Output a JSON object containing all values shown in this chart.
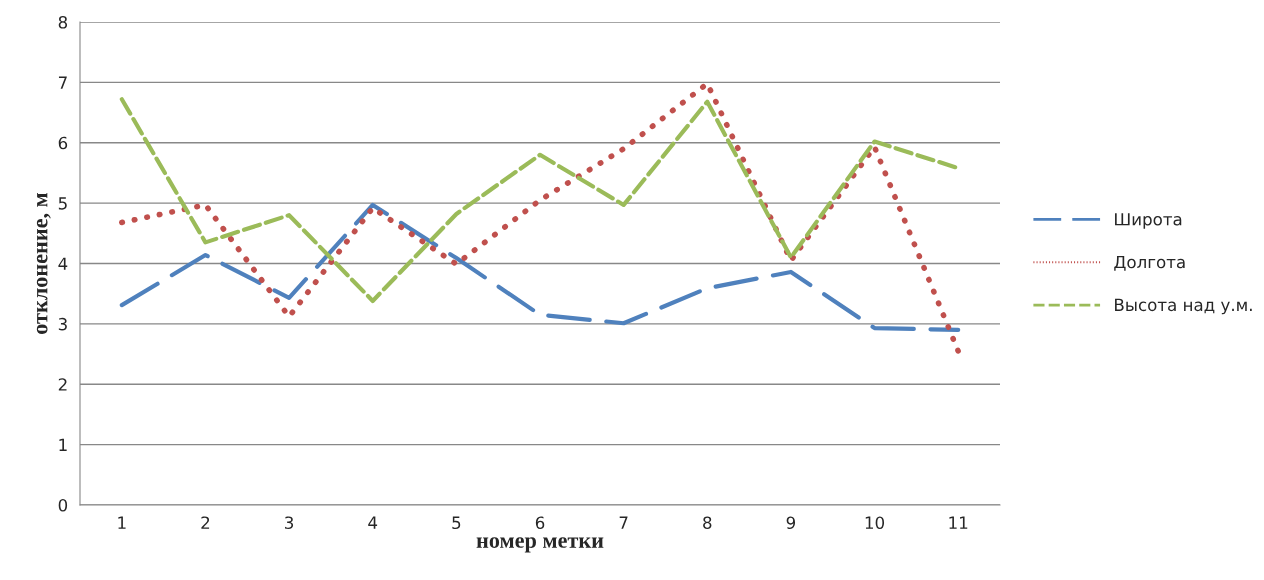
{
  "chart_data": {
    "type": "line",
    "xlabel": "номер метки",
    "ylabel": "отклонение, м",
    "categories": [
      "1",
      "2",
      "3",
      "4",
      "5",
      "6",
      "7",
      "8",
      "9",
      "10",
      "11"
    ],
    "series": [
      {
        "name": "Широта",
        "color": "#4f81bd",
        "line_style": "dashed",
        "values": [
          3.31,
          4.14,
          3.43,
          4.97,
          4.09,
          3.15,
          3.01,
          3.59,
          3.86,
          2.93,
          2.9
        ]
      },
      {
        "name": "Долгота",
        "color": "#c0504d",
        "line_style": "dotted",
        "values": [
          4.68,
          4.97,
          3.12,
          4.92,
          3.99,
          5.05,
          5.9,
          6.98,
          4.05,
          5.93,
          2.55
        ]
      },
      {
        "name": "Высота над у.м.",
        "color": "#9bbb59",
        "line_style": "dashed",
        "values": [
          6.72,
          4.35,
          4.8,
          3.38,
          4.82,
          5.8,
          4.97,
          6.68,
          4.1,
          6.02,
          5.58
        ]
      }
    ],
    "ylim": [
      0,
      8
    ],
    "yticks": [
      0,
      1,
      2,
      3,
      4,
      5,
      6,
      7,
      8
    ],
    "grid": "y",
    "legend": "right",
    "marker": "none"
  }
}
